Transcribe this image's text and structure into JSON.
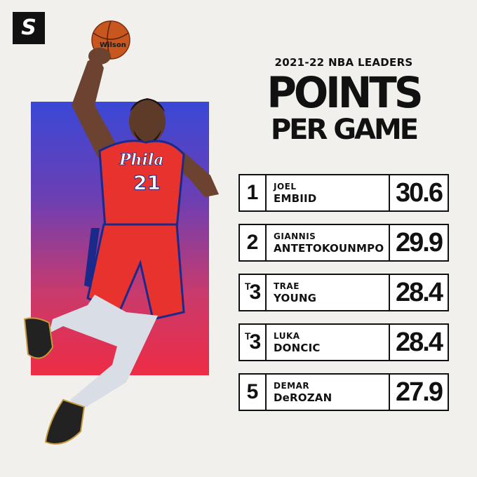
{
  "logo": {
    "letter": "S"
  },
  "header": {
    "subtitle": "2021-22 NBA LEADERS",
    "title_line1": "POINTS",
    "title_line2": "PER GAME"
  },
  "player_image": {
    "jersey_text": "Phila",
    "jersey_number": "21",
    "ball_text": "Wilson"
  },
  "leaders": [
    {
      "rank": "1",
      "tie": "",
      "first": "JOEL",
      "last": "EMBIID",
      "ppg": "30.6"
    },
    {
      "rank": "2",
      "tie": "",
      "first": "GIANNIS",
      "last": "ANTETOKOUNMPO",
      "ppg": "29.9"
    },
    {
      "rank": "3",
      "tie": "T",
      "first": "TRAE",
      "last": "YOUNG",
      "ppg": "28.4"
    },
    {
      "rank": "3",
      "tie": "T",
      "first": "LUKA",
      "last": "DONCIC",
      "ppg": "28.4"
    },
    {
      "rank": "5",
      "tie": "",
      "first": "DEMAR",
      "last": "DeROZAN",
      "ppg": "27.9"
    }
  ],
  "colors": {
    "background": "#f1f0ed",
    "gradient_top": "#3a48d6",
    "gradient_bottom": "#ee2c45",
    "jersey_red": "#e8322e",
    "text": "#111111"
  }
}
